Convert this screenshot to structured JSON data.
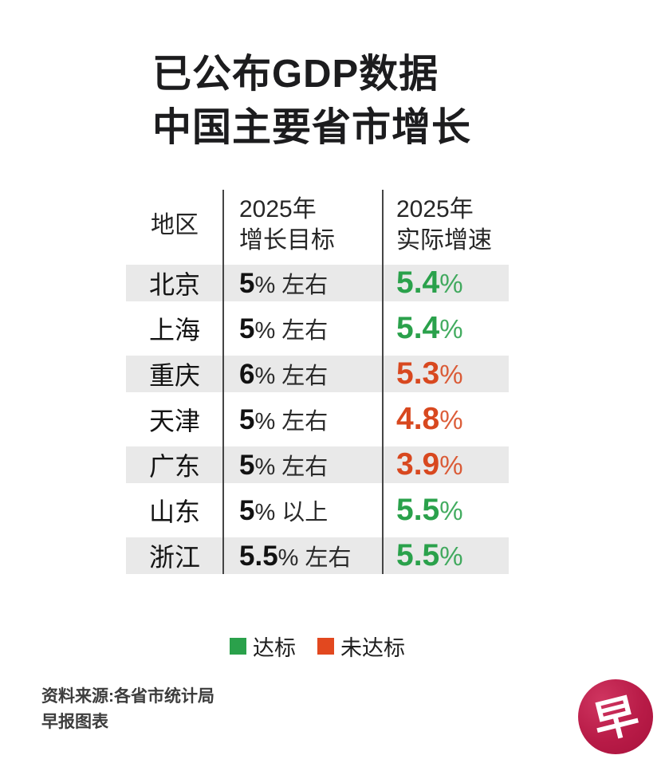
{
  "title": {
    "line1": "已公布GDP数据",
    "line2": "中国主要省市增长"
  },
  "table": {
    "col_headers": {
      "region": "地区",
      "target_line1": "2025年",
      "target_line2": "增长目标",
      "actual_line1": "2025年",
      "actual_line2": "实际增速"
    },
    "rows": [
      {
        "region": "北京",
        "target_num": "5",
        "target_rest": "% 左右",
        "actual_num": "5.4",
        "actual_pct": "%",
        "status": "met"
      },
      {
        "region": "上海",
        "target_num": "5",
        "target_rest": "% 左右",
        "actual_num": "5.4",
        "actual_pct": "%",
        "status": "met"
      },
      {
        "region": "重庆",
        "target_num": "6",
        "target_rest": "% 左右",
        "actual_num": "5.3",
        "actual_pct": "%",
        "status": "missed"
      },
      {
        "region": "天津",
        "target_num": "5",
        "target_rest": "% 左右",
        "actual_num": "4.8",
        "actual_pct": "%",
        "status": "missed"
      },
      {
        "region": "广东",
        "target_num": "5",
        "target_rest": "% 左右",
        "actual_num": "3.9",
        "actual_pct": "%",
        "status": "missed"
      },
      {
        "region": "山东",
        "target_num": "5",
        "target_rest": "% 以上",
        "actual_num": "5.5",
        "actual_pct": "%",
        "status": "met"
      },
      {
        "region": "浙江",
        "target_num": "5.5",
        "target_rest": "% 左右",
        "actual_num": "5.5",
        "actual_pct": "%",
        "status": "met"
      }
    ]
  },
  "legend": {
    "met": {
      "label": "达标",
      "status": "met",
      "color": "#2aa14b"
    },
    "missed": {
      "label": "未达标",
      "status": "missed",
      "color": "#e2481f"
    }
  },
  "source": {
    "line1": "资料来源:各省市统计局",
    "line2": "早报图表"
  },
  "logo": {
    "glyph": "早"
  },
  "colors": {
    "met_text": "#2aa14b",
    "missed_text": "#d8481f",
    "row_stripe": "#e9e9e9",
    "logo_red": "#b81b47"
  },
  "chart_data": {
    "type": "table",
    "title": "已公布GDP数据 中国主要省市增长",
    "columns": [
      "地区",
      "2025年增长目标",
      "2025年实际增速"
    ],
    "rows": [
      [
        "北京",
        "5%左右",
        5.4
      ],
      [
        "上海",
        "5%左右",
        5.4
      ],
      [
        "重庆",
        "6%左右",
        5.3
      ],
      [
        "天津",
        "5%左右",
        4.8
      ],
      [
        "广东",
        "5%左右",
        3.9
      ],
      [
        "山东",
        "5%以上",
        5.5
      ],
      [
        "浙江",
        "5.5%左右",
        5.5
      ]
    ],
    "row_status": [
      "met",
      "met",
      "missed",
      "missed",
      "missed",
      "met",
      "met"
    ],
    "legend": {
      "met": "达标",
      "missed": "未达标"
    },
    "source": "资料来源:各省市统计局 早报图表"
  }
}
